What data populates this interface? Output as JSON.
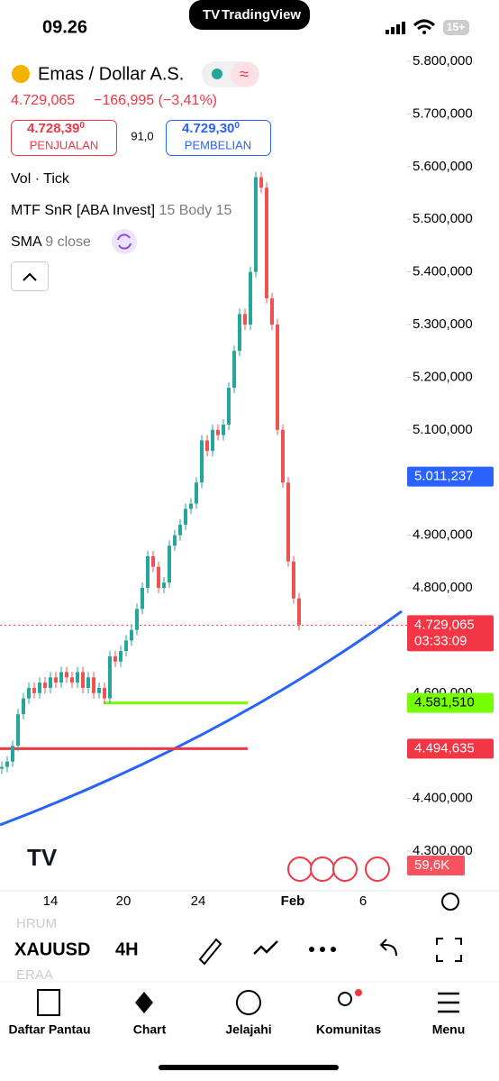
{
  "status_bar": {
    "time": "09.26",
    "app_pill": "TradingView",
    "battery": "15+"
  },
  "header": {
    "symbol_name": "Emas / Dollar A.S.",
    "quote": "4.729,065",
    "change": "−166,995 (−3,41%)",
    "sell": {
      "main": "4.728,39",
      "sup": "0",
      "label": "PENJUALAN"
    },
    "spread": "91,0",
    "buy": {
      "main": "4.729,30",
      "sup": "0",
      "label": "PEMBELIAN"
    }
  },
  "indicators": {
    "volume": "Vol · Tick",
    "snr": "MTF SnR [ABA Invest]",
    "snr_params": "15 Body 15",
    "sma": "SMA",
    "sma_params": "9 close"
  },
  "chart": {
    "type": "candlestick",
    "closes": [
      4460,
      4470,
      4500,
      4560,
      4590,
      4610,
      4600,
      4620,
      4610,
      4630,
      4620,
      4640,
      4630,
      4620,
      4640,
      4610,
      4630,
      4600,
      4610,
      4590,
      4670,
      4660,
      4680,
      4700,
      4720,
      4760,
      4800,
      4860,
      4840,
      4800,
      4810,
      4880,
      4900,
      4920,
      4950,
      4960,
      5000,
      5080,
      5060,
      5100,
      5090,
      5110,
      5180,
      5250,
      5320,
      5300,
      5400,
      5580,
      5560,
      5350,
      5300,
      5100,
      5000,
      4850,
      4780,
      4729.065
    ],
    "up_color": "#26a69a",
    "down_color": "#ef5350",
    "ylim": [
      4300,
      5800
    ],
    "yticks": [
      {
        "value": 5800,
        "label": "5.800,000"
      },
      {
        "value": 5700,
        "label": "5.700,000"
      },
      {
        "value": 5600,
        "label": "5.600,000"
      },
      {
        "value": 5500,
        "label": "5.500,000"
      },
      {
        "value": 5400,
        "label": "5.400,000"
      },
      {
        "value": 5300,
        "label": "5.300,000"
      },
      {
        "value": 5200,
        "label": "5.200,000"
      },
      {
        "value": 5100,
        "label": "5.100,000"
      },
      {
        "value": 4900,
        "label": "4.900,000"
      },
      {
        "value": 4800,
        "label": "4.800,000"
      },
      {
        "value": 4600,
        "label": "4.600,000"
      },
      {
        "value": 4400,
        "label": "4.400,000"
      },
      {
        "value": 4300,
        "label": "4.300,000"
      }
    ],
    "xticks": [
      "14",
      "20",
      "24",
      "Feb",
      "6"
    ],
    "badges": [
      {
        "value": 5011.237,
        "label": "5.011,237",
        "color": "#2962ff"
      },
      {
        "value": 4729.065,
        "label": "4.729,065",
        "time": "03:33:09",
        "color": "#f23645"
      },
      {
        "value": 4581.51,
        "label": "4.581,510",
        "color": "#76ff03"
      },
      {
        "value": 4494.635,
        "label": "4.494,635",
        "color": "#f23645"
      }
    ],
    "volume_label": "59,6K"
  },
  "toolbar": {
    "symbol": "XAUUSD",
    "interval": "4H",
    "watch_above": "HRUM",
    "watch_below": "ERAA"
  },
  "tabs": [
    "Daftar Pantau",
    "Chart",
    "Jelajahi",
    "Komunitas",
    "Menu"
  ]
}
